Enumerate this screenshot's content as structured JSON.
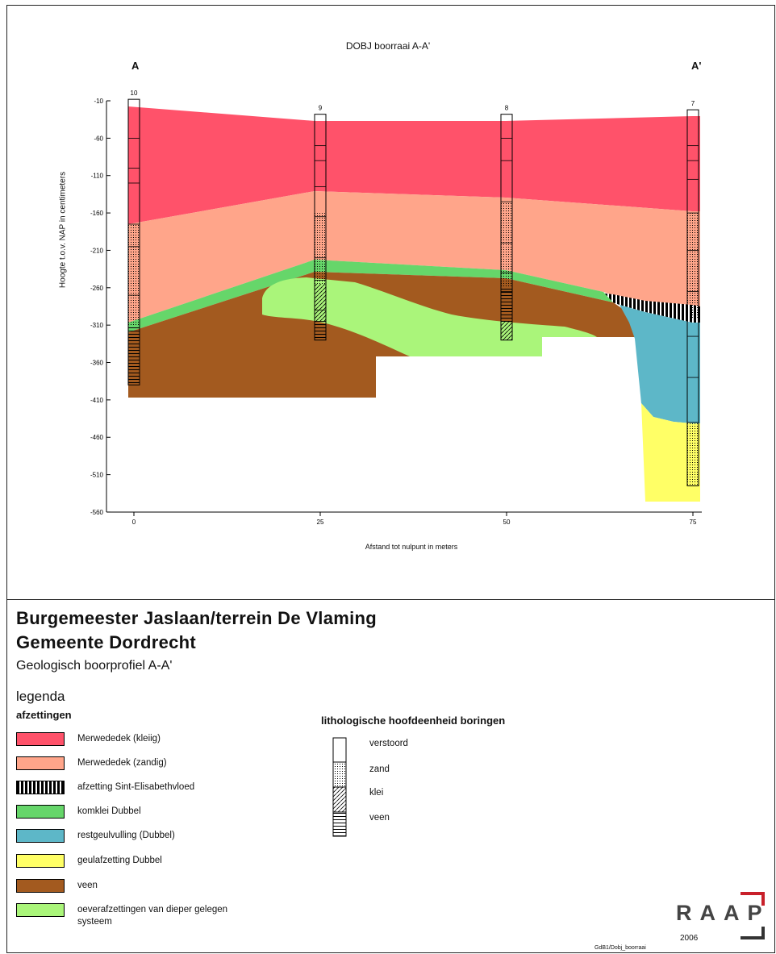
{
  "section": {
    "title": "DOBJ boorraai A-A'",
    "left_end": "A",
    "right_end": "A'",
    "y_axis_label": "Hoogte t.o.v. NAP in centimeters",
    "x_axis_label": "Afstand tot nulpunt in meters",
    "y_ticks": [
      "-10",
      "-60",
      "-110",
      "-160",
      "-210",
      "-260",
      "-310",
      "-360",
      "-410",
      "-460",
      "-510",
      "-560"
    ],
    "x_ticks": [
      "0",
      "25",
      "50",
      "75"
    ],
    "boreholes": [
      {
        "id": "10",
        "distance_m": 0,
        "top_cm": -8,
        "bottom_cm": -390
      },
      {
        "id": "9",
        "distance_m": 25,
        "top_cm": -28,
        "bottom_cm": -330
      },
      {
        "id": "8",
        "distance_m": 50,
        "top_cm": -28,
        "bottom_cm": -330
      },
      {
        "id": "7",
        "distance_m": 75,
        "top_cm": -22,
        "bottom_cm": -525
      }
    ]
  },
  "title": {
    "line1": "Burgemeester Jaslaan/terrein De Vlaming",
    "line2": "Gemeente Dordrecht",
    "subtitle": "Geologisch boorprofiel A-A'"
  },
  "legend": {
    "heading": "legenda",
    "afzettingen_heading": "afzettingen",
    "units": [
      {
        "label": "Merwededek (kleiig)",
        "color": "#ff526a"
      },
      {
        "label": "Merwededek (zandig)",
        "color": "#ffa58a"
      },
      {
        "label": "afzetting Sint-Elisabethvloed",
        "color": "#000000"
      },
      {
        "label": "komklei Dubbel",
        "color": "#66d66a"
      },
      {
        "label": "restgeulvulling (Dubbel)",
        "color": "#5db7c8"
      },
      {
        "label": "geulafzetting Dubbel",
        "color": "#ffff66"
      },
      {
        "label": "veen",
        "color": "#a35a1f"
      },
      {
        "label": "oeverafzettingen van dieper gelegen systeem",
        "color": "#aaf57a"
      }
    ],
    "lithology_heading": "lithologische hoofdeenheid boringen",
    "lithology": [
      "verstoord",
      "zand",
      "klei",
      "veen"
    ]
  },
  "footer": {
    "logo": "RAAP",
    "year": "2006",
    "file_ref": "GdB1/Dobj_boorraai"
  }
}
